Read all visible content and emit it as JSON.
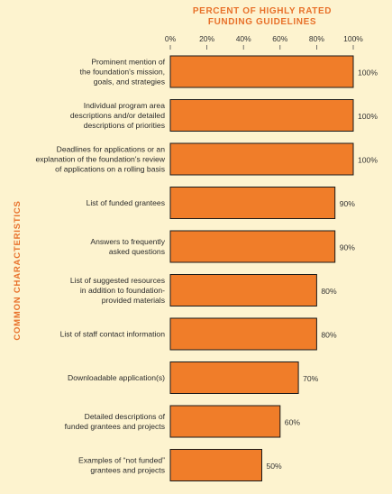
{
  "chart_data": {
    "type": "bar",
    "orientation": "horizontal",
    "title_lines": [
      "Percent of Highly Rated",
      "Funding Guidelines"
    ],
    "ylabel": "Common Characteristics",
    "xlabel": "",
    "xlim": [
      0,
      100
    ],
    "xticks": [
      "0%",
      "20%",
      "40%",
      "60%",
      "80%",
      "100%"
    ],
    "xtick_values": [
      0,
      20,
      40,
      60,
      80,
      100
    ],
    "categories": [
      [
        "Prominent mention of",
        "the foundation's mission,",
        "goals, and strategies"
      ],
      [
        "Individual program area",
        "descriptions and/or detailed",
        "descriptions of priorities"
      ],
      [
        "Deadlines for applications or an",
        "explanation of the foundation's review",
        "of applications on a rolling basis"
      ],
      [
        "List of funded grantees"
      ],
      [
        "Answers to frequently",
        "asked questions"
      ],
      [
        "List of suggested resources",
        "in addition to foundation-",
        "provided materials"
      ],
      [
        "List of staff contact information"
      ],
      [
        "Downloadable application(s)"
      ],
      [
        "Detailed descriptions of",
        "funded grantees and projects"
      ],
      [
        "Examples of “not funded”",
        "grantees and projects"
      ]
    ],
    "values": [
      100,
      100,
      100,
      90,
      90,
      80,
      80,
      70,
      60,
      50
    ],
    "value_labels": [
      "100%",
      "100%",
      "100%",
      "90%",
      "90%",
      "80%",
      "80%",
      "70%",
      "60%",
      "50%"
    ],
    "colors": {
      "bar": "#f07d29",
      "accent": "#e8712a",
      "background": "#fdf3cf"
    },
    "grid": false
  }
}
